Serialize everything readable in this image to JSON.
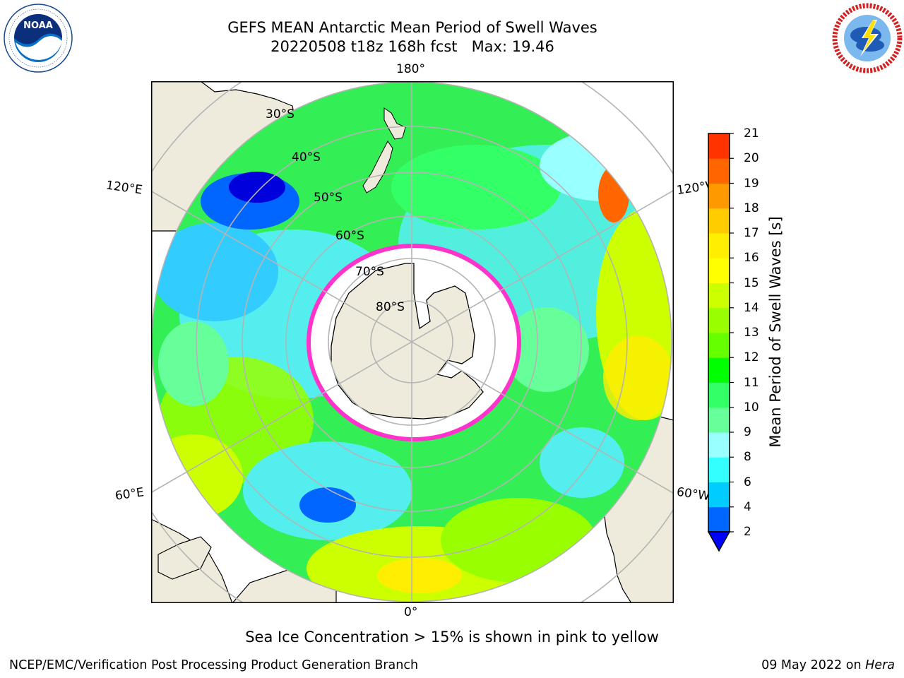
{
  "title": {
    "line1": "GEFS MEAN Antarctic Mean Period of Swell Waves",
    "line2": "20220508 t18z 168h fcst   Max: 19.46"
  },
  "logos": {
    "left": {
      "icon": "noaa-logo",
      "text": "NOAA",
      "ring_text": "NATIONAL OCEANIC AND ATMOSPHERIC ADMINISTRATION · U.S. DEPARTMENT OF COMMERCE"
    },
    "right": {
      "icon": "nws-logo",
      "ring_text": "NATIONAL WEATHER SERVICE"
    }
  },
  "map": {
    "projection": "south-polar-stereographic",
    "longitude_labels": {
      "top": "180°",
      "bottom": "0°",
      "left_upper": "120°E",
      "left_lower": "60°E",
      "right_upper": "120°W",
      "right_lower": "60°W"
    },
    "latitude_labels": [
      "30°S",
      "40°S",
      "50°S",
      "60°S",
      "70°S",
      "80°S"
    ],
    "colors": {
      "land": "#efebdc",
      "ice": "#ffffff",
      "ice_edge": "#ff33cc",
      "grid": "#b4b4b4",
      "coast": "#000000"
    }
  },
  "colorbar": {
    "label": "Mean Period of Swell Waves [s]",
    "ticks": [
      "2",
      "4",
      "6",
      "8",
      "9",
      "10",
      "11",
      "12",
      "13",
      "14",
      "15",
      "16",
      "17",
      "18",
      "19",
      "20",
      "21"
    ],
    "colors": [
      "#0066ff",
      "#00ccff",
      "#33ffff",
      "#99ffff",
      "#66ff99",
      "#33ff66",
      "#00ff00",
      "#66ff00",
      "#99ff00",
      "#ccff00",
      "#ffff00",
      "#ffee00",
      "#ffcc00",
      "#ff9900",
      "#ff6600",
      "#ff3300",
      "#ff0000"
    ],
    "extend_color": "#0000ff"
  },
  "caption": "Sea Ice Concentration > 15% is shown in pink to yellow",
  "footer": {
    "left": "NCEP/EMC/Verification Post Processing Product Generation Branch",
    "right_date": "09 May 2022 on",
    "right_host": "Hera"
  }
}
